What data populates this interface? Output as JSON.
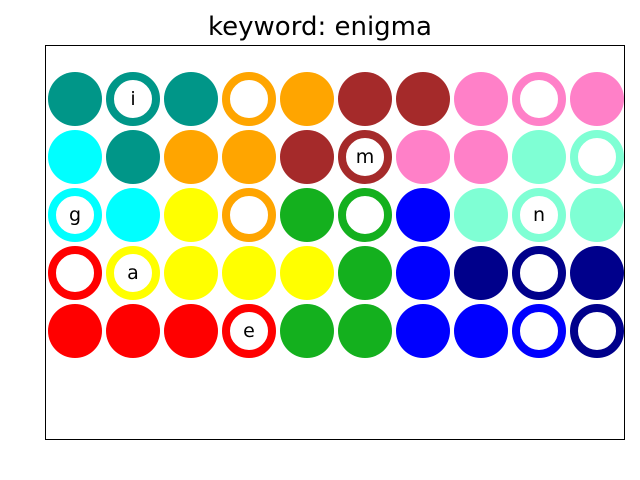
{
  "title": "keyword: enigma",
  "colors": {
    "teal": "#009688",
    "orange": "#FFA500",
    "brown": "#A52A2A",
    "pink": "#FF80C8",
    "cyan": "#00FFFF",
    "mint": "#7FFFD4",
    "yellow": "#FFFF00",
    "green": "#14B01E",
    "blue": "#0000FF",
    "navy": "#00008B",
    "red": "#FF0000"
  },
  "grid": [
    [
      {
        "color": "teal",
        "style": "filled",
        "letter": ""
      },
      {
        "color": "teal",
        "style": "ring",
        "letter": "i"
      },
      {
        "color": "teal",
        "style": "filled",
        "letter": ""
      },
      {
        "color": "orange",
        "style": "ring",
        "letter": ""
      },
      {
        "color": "orange",
        "style": "filled",
        "letter": ""
      },
      {
        "color": "brown",
        "style": "filled",
        "letter": ""
      },
      {
        "color": "brown",
        "style": "filled",
        "letter": ""
      },
      {
        "color": "pink",
        "style": "filled",
        "letter": ""
      },
      {
        "color": "pink",
        "style": "ring",
        "letter": ""
      },
      {
        "color": "pink",
        "style": "filled",
        "letter": ""
      }
    ],
    [
      {
        "color": "cyan",
        "style": "filled",
        "letter": ""
      },
      {
        "color": "teal",
        "style": "filled",
        "letter": ""
      },
      {
        "color": "orange",
        "style": "filled",
        "letter": ""
      },
      {
        "color": "orange",
        "style": "filled",
        "letter": ""
      },
      {
        "color": "brown",
        "style": "filled",
        "letter": ""
      },
      {
        "color": "brown",
        "style": "ring",
        "letter": "m"
      },
      {
        "color": "pink",
        "style": "filled",
        "letter": ""
      },
      {
        "color": "pink",
        "style": "filled",
        "letter": ""
      },
      {
        "color": "mint",
        "style": "filled",
        "letter": ""
      },
      {
        "color": "mint",
        "style": "ring",
        "letter": ""
      }
    ],
    [
      {
        "color": "cyan",
        "style": "ring",
        "letter": "g"
      },
      {
        "color": "cyan",
        "style": "filled",
        "letter": ""
      },
      {
        "color": "yellow",
        "style": "filled",
        "letter": ""
      },
      {
        "color": "orange",
        "style": "ring",
        "letter": ""
      },
      {
        "color": "green",
        "style": "filled",
        "letter": ""
      },
      {
        "color": "green",
        "style": "ring",
        "letter": ""
      },
      {
        "color": "blue",
        "style": "filled",
        "letter": ""
      },
      {
        "color": "mint",
        "style": "filled",
        "letter": ""
      },
      {
        "color": "mint",
        "style": "ring",
        "letter": "n"
      },
      {
        "color": "mint",
        "style": "filled",
        "letter": ""
      }
    ],
    [
      {
        "color": "red",
        "style": "ring",
        "letter": ""
      },
      {
        "color": "yellow",
        "style": "ring",
        "letter": "a"
      },
      {
        "color": "yellow",
        "style": "filled",
        "letter": ""
      },
      {
        "color": "yellow",
        "style": "filled",
        "letter": ""
      },
      {
        "color": "yellow",
        "style": "filled",
        "letter": ""
      },
      {
        "color": "green",
        "style": "filled",
        "letter": ""
      },
      {
        "color": "blue",
        "style": "filled",
        "letter": ""
      },
      {
        "color": "navy",
        "style": "filled",
        "letter": ""
      },
      {
        "color": "navy",
        "style": "ring",
        "letter": ""
      },
      {
        "color": "navy",
        "style": "filled",
        "letter": ""
      }
    ],
    [
      {
        "color": "red",
        "style": "filled",
        "letter": ""
      },
      {
        "color": "red",
        "style": "filled",
        "letter": ""
      },
      {
        "color": "red",
        "style": "filled",
        "letter": ""
      },
      {
        "color": "red",
        "style": "ring",
        "letter": "e"
      },
      {
        "color": "green",
        "style": "filled",
        "letter": ""
      },
      {
        "color": "green",
        "style": "filled",
        "letter": ""
      },
      {
        "color": "blue",
        "style": "filled",
        "letter": ""
      },
      {
        "color": "blue",
        "style": "filled",
        "letter": ""
      },
      {
        "color": "blue",
        "style": "ring",
        "letter": ""
      },
      {
        "color": "navy",
        "style": "ring",
        "letter": ""
      }
    ]
  ]
}
